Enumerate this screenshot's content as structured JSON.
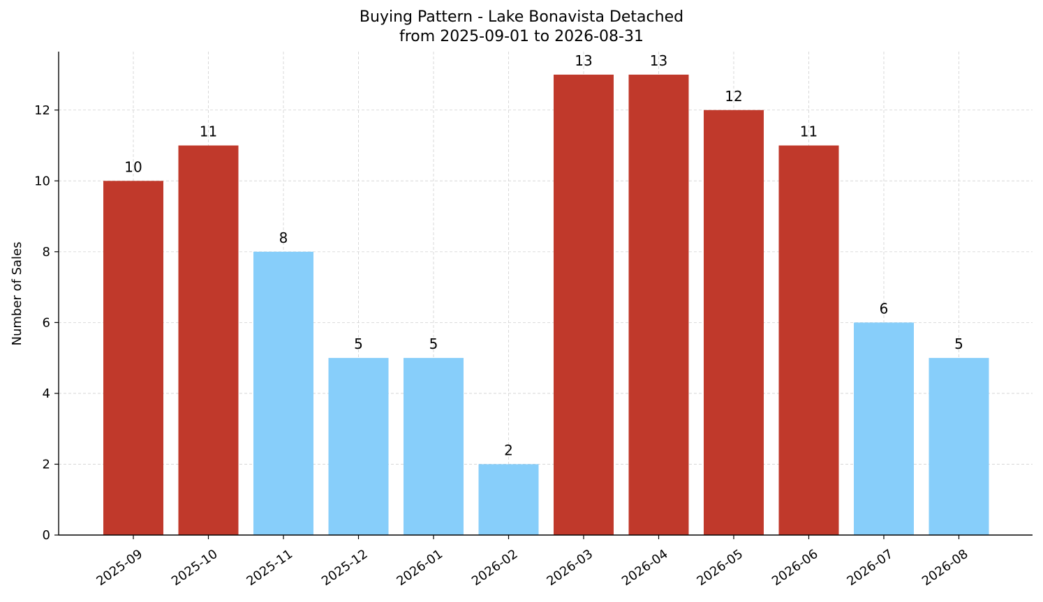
{
  "chart_data": {
    "type": "bar",
    "title": "Buying Pattern - Lake Bonavista Detached",
    "subtitle": "from 2025-09-01 to 2026-08-31",
    "xlabel": "",
    "ylabel": "Number of Sales",
    "categories": [
      "2025-09",
      "2025-10",
      "2025-11",
      "2025-12",
      "2026-01",
      "2026-02",
      "2026-03",
      "2026-04",
      "2026-05",
      "2026-06",
      "2026-07",
      "2026-08"
    ],
    "values": [
      10,
      11,
      8,
      5,
      5,
      2,
      13,
      13,
      12,
      11,
      6,
      5
    ],
    "highlight": [
      true,
      true,
      false,
      false,
      false,
      false,
      true,
      true,
      true,
      true,
      false,
      false
    ],
    "colors": {
      "highlight": "#c0392b",
      "normal": "#87cefa"
    },
    "ylim": [
      0,
      13.65
    ],
    "yticks": [
      0,
      2,
      4,
      6,
      8,
      10,
      12
    ],
    "grid": true,
    "legend": "none"
  }
}
